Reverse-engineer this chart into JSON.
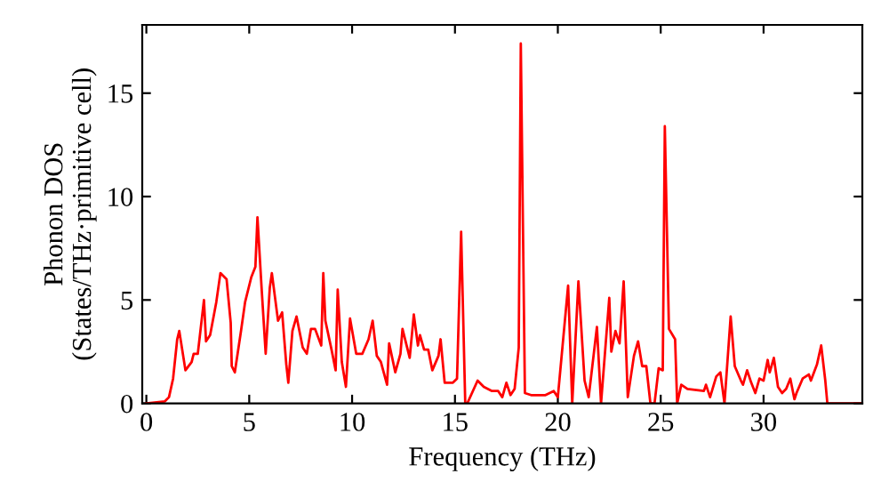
{
  "chart_data": {
    "type": "line",
    "xlabel": "Frequency (THz)",
    "ylabel": "Phonon DOS\n(States/THz·primitive cell)",
    "xlim": [
      -0.2,
      34.8
    ],
    "ylim": [
      0,
      18.3
    ],
    "xticks": [
      0,
      5,
      10,
      15,
      20,
      25,
      30
    ],
    "yticks": [
      0,
      5,
      10,
      15
    ],
    "grid": false,
    "legend": false,
    "marker": "none",
    "line_style": "solid",
    "series": [
      {
        "color": "#ff0000",
        "x": [
          0,
          0.9,
          1.1,
          1.3,
          1.5,
          1.6,
          1.9,
          2.2,
          2.3,
          2.5,
          2.8,
          2.9,
          3.1,
          3.4,
          3.6,
          3.9,
          4.1,
          4.15,
          4.3,
          4.6,
          4.8,
          5.1,
          5.3,
          5.4,
          5.6,
          5.8,
          6.0,
          6.1,
          6.4,
          6.6,
          6.8,
          6.9,
          7.1,
          7.3,
          7.6,
          7.8,
          8.0,
          8.2,
          8.5,
          8.6,
          8.7,
          9.0,
          9.2,
          9.3,
          9.5,
          9.7,
          9.9,
          10.2,
          10.5,
          10.8,
          11.0,
          11.2,
          11.4,
          11.7,
          11.8,
          12.1,
          12.35,
          12.45,
          12.8,
          13.0,
          13.2,
          13.3,
          13.5,
          13.7,
          13.9,
          14.2,
          14.3,
          14.5,
          14.9,
          15.1,
          15.3,
          15.5,
          15.6,
          16.1,
          16.4,
          16.8,
          17.1,
          17.3,
          17.5,
          17.7,
          17.9,
          18.1,
          18.2,
          18.4,
          18.7,
          19.4,
          19.8,
          20.0,
          20.5,
          20.7,
          21.0,
          21.3,
          21.5,
          21.9,
          22.1,
          22.5,
          22.6,
          22.8,
          23.0,
          23.2,
          23.4,
          23.7,
          23.9,
          24.1,
          24.3,
          24.5,
          24.7,
          24.9,
          25.1,
          25.2,
          25.4,
          25.7,
          25.8,
          26.0,
          26.3,
          27.1,
          27.2,
          27.4,
          27.7,
          27.9,
          28.1,
          28.4,
          28.6,
          28.9,
          29.0,
          29.2,
          29.4,
          29.6,
          29.8,
          30.0,
          30.2,
          30.3,
          30.5,
          30.7,
          30.9,
          31.1,
          31.3,
          31.5,
          31.6,
          31.9,
          32.2,
          32.3,
          32.6,
          32.8,
          33.0,
          33.1,
          34.8
        ],
        "values": [
          0,
          0.1,
          0.3,
          1.2,
          3.1,
          3.5,
          1.6,
          2.0,
          2.4,
          2.4,
          5.0,
          3.0,
          3.3,
          4.9,
          6.3,
          6.0,
          3.9,
          1.8,
          1.5,
          3.5,
          4.9,
          6.1,
          6.6,
          9.0,
          5.6,
          2.4,
          5.6,
          6.3,
          4.0,
          4.4,
          1.9,
          1.0,
          3.5,
          4.2,
          2.7,
          2.4,
          3.6,
          3.6,
          2.8,
          6.3,
          4.0,
          2.6,
          1.6,
          5.5,
          2.0,
          0.8,
          4.1,
          2.4,
          2.4,
          3.1,
          4.0,
          2.3,
          2.0,
          0.9,
          2.9,
          1.5,
          2.4,
          3.6,
          2.2,
          4.3,
          2.8,
          3.3,
          2.6,
          2.6,
          1.6,
          2.3,
          3.1,
          1.0,
          1.0,
          1.2,
          8.3,
          0,
          0,
          1.1,
          0.8,
          0.6,
          0.6,
          0.3,
          1.0,
          0.4,
          0.7,
          2.7,
          17.4,
          0.5,
          0.4,
          0.4,
          0.6,
          0.3,
          5.7,
          0,
          5.9,
          1.1,
          0.3,
          3.7,
          0,
          5.1,
          2.5,
          3.5,
          2.9,
          5.9,
          0.3,
          2.3,
          3.0,
          1.8,
          1.8,
          0,
          0,
          1.7,
          1.6,
          13.4,
          3.6,
          3.1,
          0,
          0.9,
          0.7,
          0.6,
          0.9,
          0.3,
          1.3,
          1.5,
          0,
          4.2,
          1.8,
          1.1,
          0.9,
          1.6,
          1.0,
          0.5,
          1.2,
          1.1,
          2.1,
          1.5,
          2.2,
          0.8,
          0.5,
          0.7,
          1.2,
          0.2,
          0.5,
          1.2,
          1.4,
          1.1,
          1.9,
          2.8,
          1.1,
          0,
          0
        ]
      }
    ]
  }
}
